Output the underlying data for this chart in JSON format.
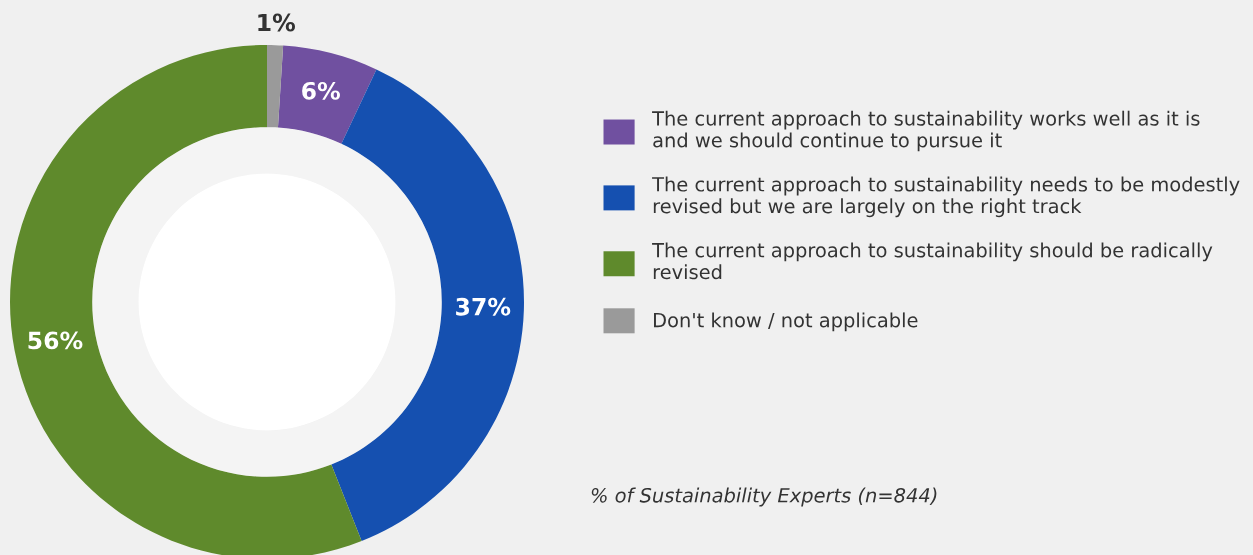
{
  "chart_data": {
    "type": "donut",
    "categories": [
      "The current approach to sustainability works well as it is and we should continue to pursue it",
      "The current approach to sustainability needs to be modestly revised but we are largely on the right track",
      "The current approach to sustainability should be radically revised",
      "Don't know / not applicable"
    ],
    "values": [
      6,
      37,
      56,
      1
    ],
    "colors": [
      "#7050a0",
      "#1550b0",
      "#5f8a2c",
      "#9a9a9a"
    ],
    "value_labels": [
      "6%",
      "37%",
      "56%",
      "1%"
    ],
    "legend": "right",
    "annotations": [
      "% of Sustainability Experts (n=844)"
    ]
  }
}
